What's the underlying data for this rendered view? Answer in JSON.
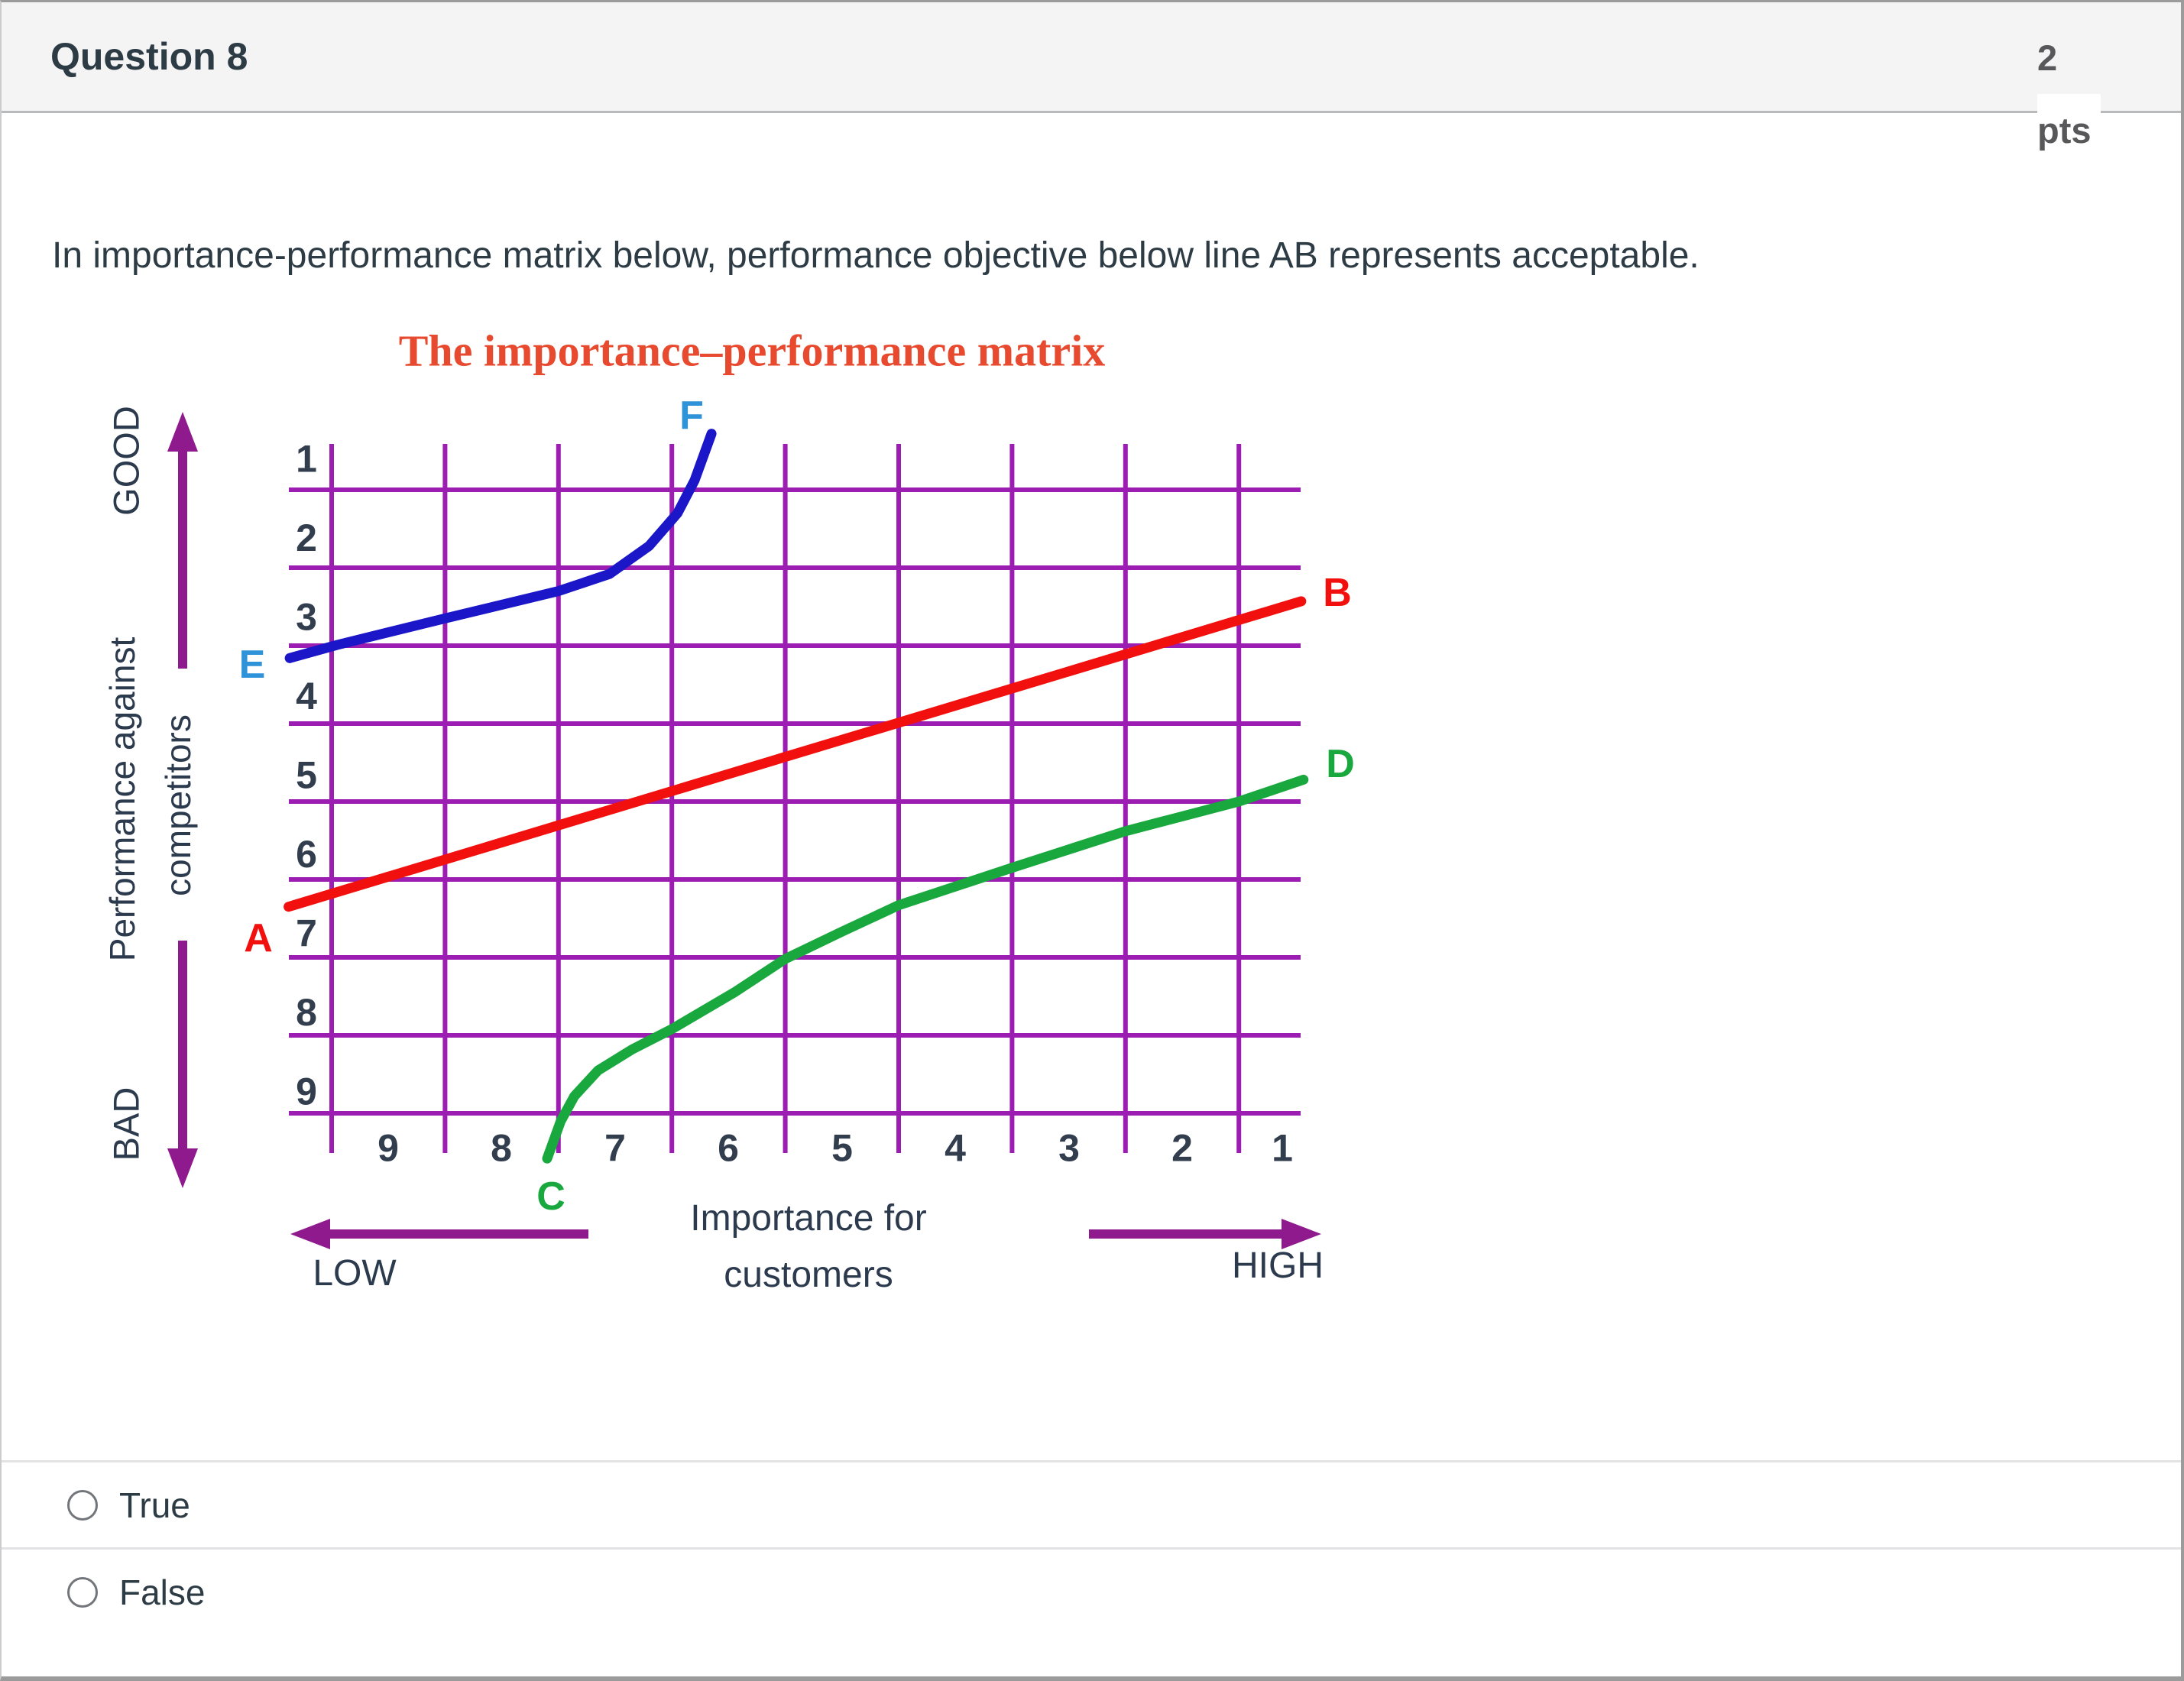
{
  "header": {
    "title": "Question 8",
    "points_value": "2",
    "points_unit": "pts"
  },
  "question": {
    "text": "In importance-performance matrix below, performance objective below line AB represents acceptable."
  },
  "chart_data": {
    "type": "line",
    "title": "The importance–performance matrix",
    "title_color": "#e84a2f",
    "x_axis": {
      "label": "Importance for customers",
      "label_lines": [
        "Importance for",
        "customers"
      ],
      "ticks": [
        9,
        8,
        7,
        6,
        5,
        4,
        3,
        2,
        1
      ],
      "reversed": true,
      "endpoint_labels": {
        "left": "LOW",
        "right": "HIGH"
      }
    },
    "y_axis": {
      "label": "Performance against competitors",
      "label_lines": [
        "Performance against",
        "competitors"
      ],
      "ticks": [
        1,
        2,
        3,
        4,
        5,
        6,
        7,
        8,
        9
      ],
      "inverted": true,
      "endpoint_labels": {
        "top": "GOOD",
        "bottom": "BAD"
      }
    },
    "grid": {
      "color": "#9c1db1",
      "columns": 9,
      "rows": 9
    },
    "arrow_color": "#8e1a8e",
    "text_color": "#2c3a4e",
    "tick_color": "#323d4d",
    "series": [
      {
        "name": "EF",
        "start_label": "E",
        "end_label": "F",
        "color": "#1b17c8",
        "label_color": "#2e93d8",
        "points": [
          [
            9.87,
            3.66
          ],
          [
            9.45,
            3.49
          ],
          [
            8.5,
            3.15
          ],
          [
            7.5,
            2.8
          ],
          [
            7.05,
            2.58
          ],
          [
            6.7,
            2.22
          ],
          [
            6.45,
            1.8
          ],
          [
            6.3,
            1.38
          ],
          [
            6.2,
            0.98
          ],
          [
            6.15,
            0.78
          ]
        ]
      },
      {
        "name": "AB",
        "start_label": "A",
        "end_label": "B",
        "color": "#f1100d",
        "label_color": "#f1100d",
        "points": [
          [
            9.88,
            6.85
          ],
          [
            0.95,
            2.93
          ]
        ]
      },
      {
        "name": "CD",
        "start_label": "C",
        "end_label": "D",
        "color": "#18a83d",
        "label_color": "#18a83d",
        "points": [
          [
            7.6,
            10.08
          ],
          [
            7.48,
            9.6
          ],
          [
            7.36,
            9.28
          ],
          [
            7.15,
            8.95
          ],
          [
            6.85,
            8.68
          ],
          [
            6.5,
            8.42
          ],
          [
            5.95,
            7.95
          ],
          [
            5.5,
            7.52
          ],
          [
            5.0,
            7.17
          ],
          [
            4.5,
            6.83
          ],
          [
            3.5,
            6.35
          ],
          [
            2.5,
            5.88
          ],
          [
            1.5,
            5.5
          ],
          [
            0.93,
            5.22
          ]
        ]
      }
    ]
  },
  "options": [
    {
      "label": "True",
      "selected": false
    },
    {
      "label": "False",
      "selected": false
    }
  ]
}
